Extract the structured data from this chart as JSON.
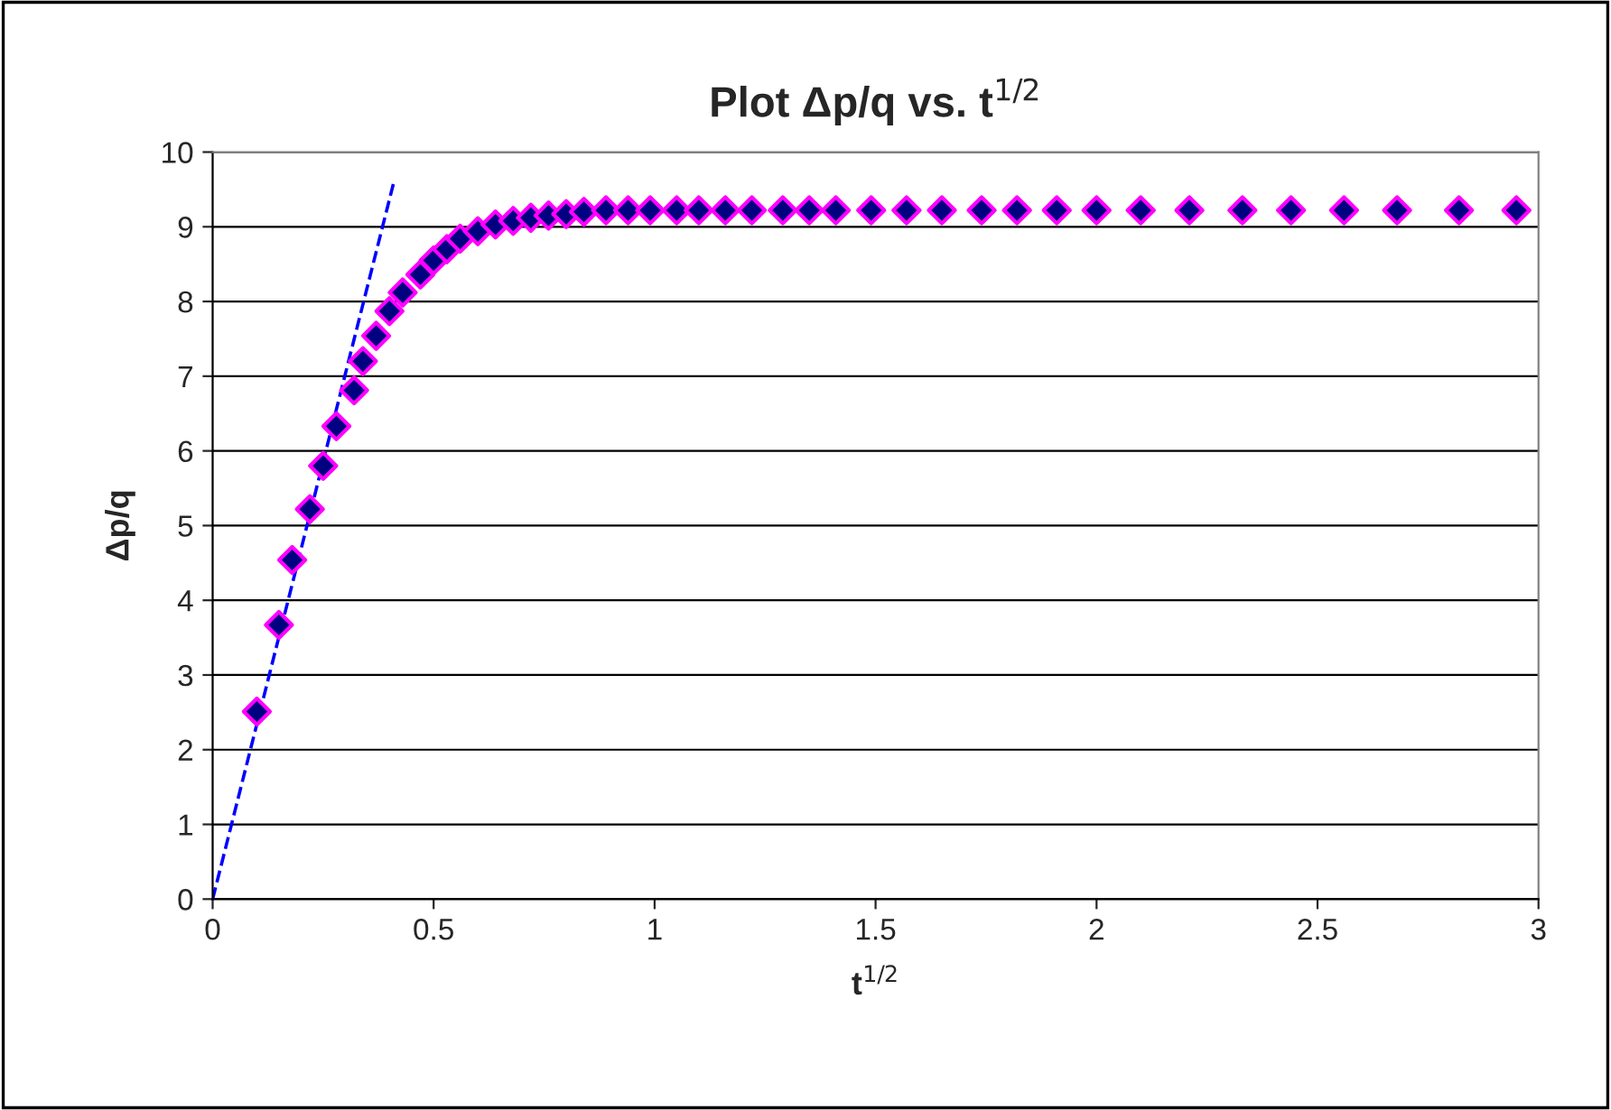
{
  "chart_data": {
    "type": "scatter",
    "title": "Plot Δp/q vs. t$^{1/2}$",
    "xlabel": "t$^{1/2}$",
    "ylabel": "Δp/q",
    "xlim": [
      0,
      3
    ],
    "xticks": [
      0,
      0.5,
      1,
      1.5,
      2,
      2.5,
      3
    ],
    "ylim": [
      0,
      10
    ],
    "yticks": [
      0,
      1,
      2,
      3,
      4,
      5,
      6,
      7,
      8,
      9,
      10
    ],
    "grid": "y",
    "legend": false,
    "series": [
      {
        "marker": "diamond",
        "color": "#000080",
        "x": [
          0.1,
          0.15,
          0.18,
          0.22,
          0.25,
          0.28,
          0.32,
          0.34,
          0.37,
          0.4,
          0.43,
          0.47,
          0.5,
          0.53,
          0.56,
          0.6,
          0.64,
          0.68,
          0.72,
          0.76,
          0.8,
          0.84,
          0.89,
          0.94,
          0.99,
          1.05,
          1.1,
          1.16,
          1.22,
          1.29,
          1.35,
          1.41,
          1.49,
          1.57,
          1.65,
          1.74,
          1.82,
          1.91,
          2.0,
          2.1,
          2.21,
          2.33,
          2.44,
          2.56,
          2.68,
          2.82,
          2.95
        ],
        "values": [
          2.51,
          3.67,
          4.54,
          5.22,
          5.8,
          6.33,
          6.81,
          7.2,
          7.54,
          7.87,
          8.12,
          8.36,
          8.55,
          8.7,
          8.84,
          8.94,
          9.03,
          9.08,
          9.12,
          9.15,
          9.17,
          9.2,
          9.22,
          9.22,
          9.22,
          9.22,
          9.22,
          9.22,
          9.22,
          9.22,
          9.22,
          9.22,
          9.22,
          9.22,
          9.22,
          9.22,
          9.22,
          9.22,
          9.22,
          9.22,
          9.22,
          9.22,
          9.22,
          9.22,
          9.22,
          9.22,
          9.22
        ]
      },
      {
        "type": "line",
        "line_style": "dashed",
        "marker": "none",
        "color": "#0000ff",
        "x": [
          0,
          0.41
        ],
        "values": [
          0,
          9.6
        ]
      }
    ]
  }
}
